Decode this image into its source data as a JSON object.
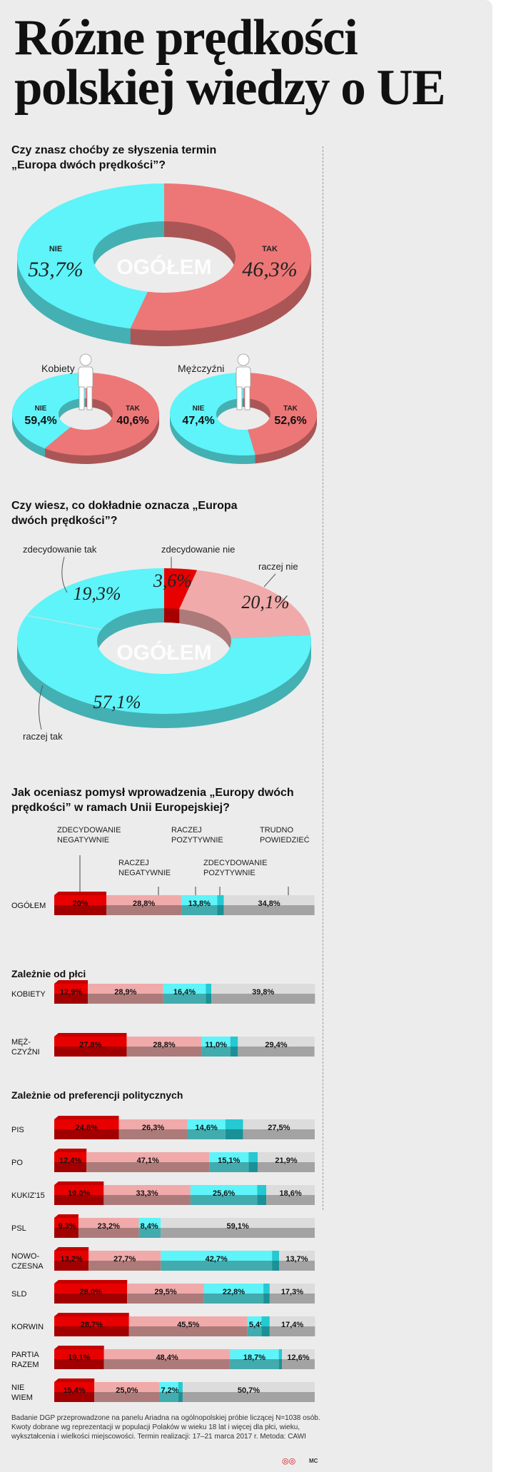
{
  "title": "Różne prędkości polskiej wiedzy o UE",
  "colors": {
    "red": "#e80000",
    "salmon": "#ed7777",
    "pink": "#f0aaaa",
    "cyan": "#5ef4f9",
    "teal": "#24c9d1",
    "gray": "#dcdcdc"
  },
  "q1": {
    "question": "Czy znasz choćby ze słyszenia termin „Europa dwóch prędkości”?"
  },
  "q2": {
    "question": "Czy wiesz, co dokładnie oznacza „Europa dwóch prędkości”?"
  },
  "q3": {
    "question": "Jak oceniasz pomysł wprowadzenia „Europy dwóch prędkości” w ramach Unii Europejskiej?",
    "group_gender": "Zależnie od płci",
    "group_politics": "Zależnie od preferencji politycznych",
    "headers": [
      "ZDECYDOWANIE NEGATYWNIE",
      "RACZEJ NEGATYWNIE",
      "RACZEJ POZYTYWNIE",
      "ZDECYDOWANIE POZYTYWNIE",
      "TRUDNO POWIEDZIEĆ"
    ]
  },
  "chart_data": [
    {
      "type": "pie",
      "variant": "donut",
      "title": "Czy znasz choćby ze słyszenia termin „Europa dwóch prędkości”?",
      "center_label": "OGÓŁEM",
      "slices": [
        {
          "label": "NIE",
          "value": 53.7,
          "text": "53,7%"
        },
        {
          "label": "TAK",
          "value": 46.3,
          "text": "46,3%"
        }
      ]
    },
    {
      "type": "pie",
      "variant": "donut",
      "group": "Kobiety",
      "slices": [
        {
          "label": "NIE",
          "value": 59.4,
          "text": "59,4%"
        },
        {
          "label": "TAK",
          "value": 40.6,
          "text": "40,6%"
        }
      ]
    },
    {
      "type": "pie",
      "variant": "donut",
      "group": "Mężczyźni",
      "slices": [
        {
          "label": "NIE",
          "value": 47.4,
          "text": "47,4%"
        },
        {
          "label": "TAK",
          "value": 52.6,
          "text": "52,6%"
        }
      ]
    },
    {
      "type": "pie",
      "variant": "donut",
      "title": "Czy wiesz, co dokładnie oznacza „Europa dwóch prędkości”?",
      "center_label": "OGÓŁEM",
      "slices": [
        {
          "label": "zdecydowanie nie",
          "value": 3.6,
          "text": "3,6%"
        },
        {
          "label": "raczej nie",
          "value": 20.1,
          "text": "20,1%"
        },
        {
          "label": "raczej tak",
          "value": 57.1,
          "text": "57,1%"
        },
        {
          "label": "zdecydowanie tak",
          "value": 19.3,
          "text": "19,3%"
        }
      ]
    },
    {
      "type": "bar",
      "variant": "stacked-horizontal-100",
      "title": "Jak oceniasz pomysł wprowadzenia „Europy dwóch prędkości” w ramach Unii Europejskiej?",
      "series_names": [
        "ZDECYDOWANIE NEGATYWNIE",
        "RACZEJ NEGATYWNIE",
        "RACZEJ POZYTYWNIE",
        "ZDECYDOWANIE POZYTYWNIE",
        "TRUDNO POWIEDZIEĆ"
      ],
      "rows": [
        {
          "category": "OGÓŁEM",
          "values": [
            20,
            28.8,
            13.8,
            2.5,
            34.8
          ],
          "labels": [
            "20%",
            "28,8%",
            "13,8%",
            "2,5%",
            "34,8%"
          ]
        },
        {
          "category": "KOBIETY",
          "values": [
            12.9,
            28.9,
            16.4,
            2.1,
            39.8
          ],
          "labels": [
            "12,9%",
            "28,9%",
            "16,4%",
            "2,1%",
            "39,8%"
          ]
        },
        {
          "category": "MĘŻ-CZYŹNI",
          "values": [
            27.8,
            28.8,
            11.0,
            2.9,
            29.4
          ],
          "labels": [
            "27,8%",
            "28,8%",
            "11,0%",
            "2,9%",
            "29,4%"
          ]
        },
        {
          "category": "PIS",
          "values": [
            24.8,
            26.3,
            14.6,
            6.8,
            27.5
          ],
          "labels": [
            "24,8%",
            "26,3%",
            "14,6%",
            "6,8%",
            "27,5%"
          ]
        },
        {
          "category": "PO",
          "values": [
            12.4,
            47.1,
            15.1,
            3.5,
            21.9
          ],
          "labels": [
            "12,4%",
            "47,1%",
            "15,1%",
            "3,5%",
            "21,9%"
          ]
        },
        {
          "category": "KUKIZ'15",
          "values": [
            19.0,
            33.3,
            25.6,
            3.5,
            18.6
          ],
          "labels": [
            "19,0%",
            "33,3%",
            "25,6%",
            "3,5%",
            "18,6%"
          ]
        },
        {
          "category": "PSL",
          "values": [
            9.3,
            23.2,
            8.4,
            0,
            59.1
          ],
          "labels": [
            "9,3%",
            "23,2%",
            "8,4%",
            "",
            "59,1%"
          ]
        },
        {
          "category": "NOWO-CZESNA",
          "values": [
            13.2,
            27.7,
            42.7,
            2.7,
            13.7
          ],
          "labels": [
            "13,2%",
            "27,7%",
            "42,7%",
            "2,7%",
            "13,7%"
          ]
        },
        {
          "category": "SLD",
          "values": [
            28.0,
            29.5,
            22.8,
            2.4,
            17.3
          ],
          "labels": [
            "28,0%",
            "29,5%",
            "22,8%",
            "2,4%",
            "17,3%"
          ]
        },
        {
          "category": "KORWIN",
          "values": [
            28.7,
            45.5,
            5.4,
            3.1,
            17.4
          ],
          "labels": [
            "28,7%",
            "45,5%",
            "5,4%",
            "3,1%",
            "17,4%"
          ]
        },
        {
          "category": "PARTIA RAZEM",
          "values": [
            19.1,
            48.4,
            18.7,
            1.2,
            12.6
          ],
          "labels": [
            "19,1%",
            "48,4%",
            "18,7%",
            "1,2%",
            "12,6%"
          ]
        },
        {
          "category": "NIE WIEM",
          "values": [
            15.4,
            25.0,
            7.2,
            1.7,
            50.7
          ],
          "labels": [
            "15,4%",
            "25,0%",
            "7,2%",
            "1,7%",
            "50,7%"
          ]
        }
      ]
    }
  ],
  "footnote": "Badanie DGP przeprowadzone na panelu Ariadna na ogólnopolskiej próbie liczącej N=1038 osób. Kwoty dobrane wg reprezentacji w populacji Polaków w wieku 18 lat i więcej dla płci, wieku, wykształcenia i wielkości miejscowości. Termin realizacji: 17–21 marca 2017 r. Metoda: CAWI",
  "logo": "◎◎",
  "credit": "MC"
}
